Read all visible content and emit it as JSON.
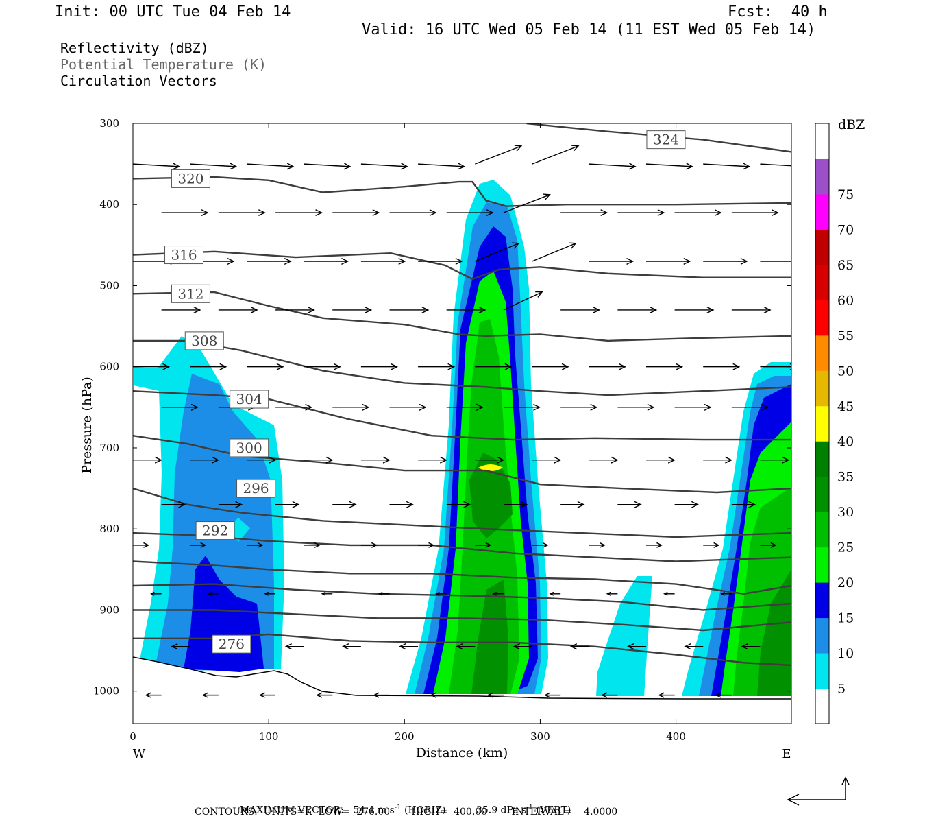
{
  "header": {
    "init": "Init: 00 UTC Tue 04 Feb 14",
    "fcst": "Fcst:  40 h",
    "valid": "Valid: 16 UTC Wed 05 Feb 14 (11 EST Wed 05 Feb 14)"
  },
  "legend_titles": [
    "Reflectivity (dBZ)",
    "Potential Temperature (K)",
    "Circulation Vectors"
  ],
  "footer": {
    "max_vector_label": "MAXIMUM VECTOR:",
    "horiz": "54.4 m s",
    "horiz_sup": "-1",
    "horiz_tag": "(HORIZ)",
    "vert": "35.9 dPa s",
    "vert_sup": "-1",
    "vert_tag": "(VERT)",
    "contours": "CONTOURS:  UNITS=K  LOW=  276.00       HIGH=  400.00        INTERVAL=    4.0000"
  },
  "colorbar": {
    "unit": "dBZ",
    "levels": [
      5,
      10,
      15,
      20,
      25,
      30,
      35,
      40,
      45,
      50,
      55,
      60,
      65,
      70,
      75
    ],
    "colors": [
      "#ffffff",
      "#00e5ee",
      "#1c8ee8",
      "#0000e6",
      "#00f000",
      "#00bf00",
      "#009000",
      "#008000",
      "#ffff00",
      "#e6b800",
      "#ff8c00",
      "#ff0000",
      "#d70000",
      "#c00000",
      "#ff00ff",
      "#9c4fc8",
      "#ffffff"
    ]
  },
  "chart_data": {
    "type": "heatmap",
    "xlabel": "Distance (km)",
    "ylabel": "Pressure (hPa)",
    "xlim": [
      0,
      485
    ],
    "ylim": [
      300,
      1040
    ],
    "x_ticks": [
      0,
      100,
      200,
      300,
      400
    ],
    "y_ticks": [
      300,
      400,
      500,
      600,
      700,
      800,
      900,
      1000
    ],
    "x_end_labels": {
      "left": "W",
      "right": "E"
    },
    "theta_contours": [
      {
        "label": "324",
        "label_x": 380,
        "label_p": 320,
        "pts": [
          [
            290,
            300
          ],
          [
            350,
            310
          ],
          [
            420,
            320
          ],
          [
            485,
            335
          ]
        ]
      },
      {
        "label": "320",
        "label_x": 30,
        "label_p": 368,
        "pts": [
          [
            0,
            368
          ],
          [
            60,
            366
          ],
          [
            100,
            370
          ],
          [
            140,
            385
          ],
          [
            200,
            378
          ],
          [
            240,
            372
          ],
          [
            250,
            372
          ],
          [
            260,
            395
          ],
          [
            275,
            402
          ],
          [
            320,
            400
          ],
          [
            400,
            400
          ],
          [
            485,
            398
          ]
        ]
      },
      {
        "label": "316",
        "label_x": 25,
        "label_p": 462,
        "pts": [
          [
            0,
            462
          ],
          [
            60,
            458
          ],
          [
            120,
            465
          ],
          [
            190,
            460
          ],
          [
            230,
            475
          ],
          [
            250,
            492
          ],
          [
            270,
            480
          ],
          [
            300,
            477
          ],
          [
            350,
            485
          ],
          [
            420,
            490
          ],
          [
            485,
            490
          ]
        ]
      },
      {
        "label": "312",
        "label_x": 30,
        "label_p": 510,
        "pts": [
          [
            0,
            510
          ],
          [
            60,
            508
          ],
          [
            100,
            525
          ],
          [
            140,
            540
          ],
          [
            200,
            548
          ],
          [
            240,
            560
          ],
          [
            260,
            562
          ],
          [
            300,
            560
          ],
          [
            350,
            568
          ],
          [
            410,
            565
          ],
          [
            485,
            562
          ]
        ]
      },
      {
        "label": "308",
        "label_x": 40,
        "label_p": 568,
        "pts": [
          [
            0,
            568
          ],
          [
            40,
            568
          ],
          [
            80,
            580
          ],
          [
            140,
            605
          ],
          [
            200,
            620
          ],
          [
            260,
            625
          ],
          [
            300,
            630
          ],
          [
            350,
            635
          ],
          [
            420,
            630
          ],
          [
            485,
            625
          ]
        ]
      },
      {
        "label": "304",
        "label_x": 73,
        "label_p": 640,
        "pts": [
          [
            0,
            630
          ],
          [
            60,
            635
          ],
          [
            100,
            640
          ],
          [
            160,
            665
          ],
          [
            220,
            685
          ],
          [
            280,
            690
          ],
          [
            340,
            688
          ],
          [
            420,
            690
          ],
          [
            485,
            690
          ]
        ]
      },
      {
        "label": "300",
        "label_x": 73,
        "label_p": 700,
        "pts": [
          [
            0,
            685
          ],
          [
            40,
            695
          ],
          [
            80,
            710
          ],
          [
            140,
            718
          ],
          [
            200,
            728
          ],
          [
            260,
            728
          ],
          [
            300,
            745
          ],
          [
            360,
            750
          ],
          [
            430,
            755
          ],
          [
            485,
            750
          ]
        ]
      },
      {
        "label": "296",
        "label_x": 78,
        "label_p": 750,
        "pts": [
          [
            0,
            750
          ],
          [
            40,
            770
          ],
          [
            80,
            780
          ],
          [
            140,
            790
          ],
          [
            200,
            795
          ],
          [
            260,
            800
          ],
          [
            330,
            805
          ],
          [
            400,
            810
          ],
          [
            485,
            805
          ]
        ]
      },
      {
        "label": "292",
        "label_x": 48,
        "label_p": 802,
        "pts": [
          [
            0,
            805
          ],
          [
            50,
            808
          ],
          [
            100,
            815
          ],
          [
            160,
            820
          ],
          [
            220,
            820
          ],
          [
            280,
            830
          ],
          [
            340,
            835
          ],
          [
            400,
            840
          ],
          [
            485,
            835
          ]
        ]
      },
      {
        "label": "",
        "label_x": 0,
        "label_p": 840,
        "pts": [
          [
            0,
            840
          ],
          [
            60,
            845
          ],
          [
            100,
            850
          ],
          [
            160,
            855
          ],
          [
            220,
            855
          ],
          [
            280,
            860
          ],
          [
            340,
            862
          ],
          [
            400,
            868
          ],
          [
            450,
            880
          ],
          [
            485,
            870
          ]
        ]
      },
      {
        "label": "",
        "label_x": 0,
        "label_p": 870,
        "pts": [
          [
            0,
            870
          ],
          [
            60,
            868
          ],
          [
            120,
            875
          ],
          [
            180,
            880
          ],
          [
            240,
            882
          ],
          [
            300,
            885
          ],
          [
            360,
            890
          ],
          [
            420,
            900
          ],
          [
            485,
            892
          ]
        ]
      },
      {
        "label": "",
        "label_x": 0,
        "label_p": 900,
        "pts": [
          [
            0,
            900
          ],
          [
            60,
            900
          ],
          [
            120,
            905
          ],
          [
            180,
            910
          ],
          [
            240,
            910
          ],
          [
            300,
            912
          ],
          [
            360,
            918
          ],
          [
            420,
            925
          ],
          [
            485,
            915
          ]
        ]
      },
      {
        "label": "276",
        "label_x": 60,
        "label_p": 942,
        "pts": [
          [
            0,
            935
          ],
          [
            60,
            935
          ],
          [
            100,
            930
          ],
          [
            160,
            938
          ],
          [
            220,
            940
          ],
          [
            280,
            940
          ],
          [
            340,
            945
          ],
          [
            400,
            955
          ],
          [
            450,
            965
          ],
          [
            485,
            968
          ]
        ]
      }
    ],
    "vector_rows": [
      {
        "p": 350,
        "dx": 0.9,
        "dy": 0.05
      },
      {
        "p": 410,
        "dx": 0.9,
        "dy": 0.0
      },
      {
        "p": 470,
        "dx": 0.85,
        "dy": 0.0
      },
      {
        "p": 530,
        "dx": 0.75,
        "dy": 0.0
      },
      {
        "p": 600,
        "dx": 0.7,
        "dy": 0.0
      },
      {
        "p": 650,
        "dx": 0.7,
        "dy": 0.0
      },
      {
        "p": 715,
        "dx": 0.55,
        "dy": 0.0
      },
      {
        "p": 770,
        "dx": 0.45,
        "dy": 0.0
      },
      {
        "p": 820,
        "dx": 0.3,
        "dy": 0.0
      },
      {
        "p": 880,
        "dx": -0.2,
        "dy": 0.0
      },
      {
        "p": 945,
        "dx": -0.35,
        "dy": 0.0
      },
      {
        "p": 1005,
        "dx": -0.3,
        "dy": 0.0
      }
    ]
  }
}
